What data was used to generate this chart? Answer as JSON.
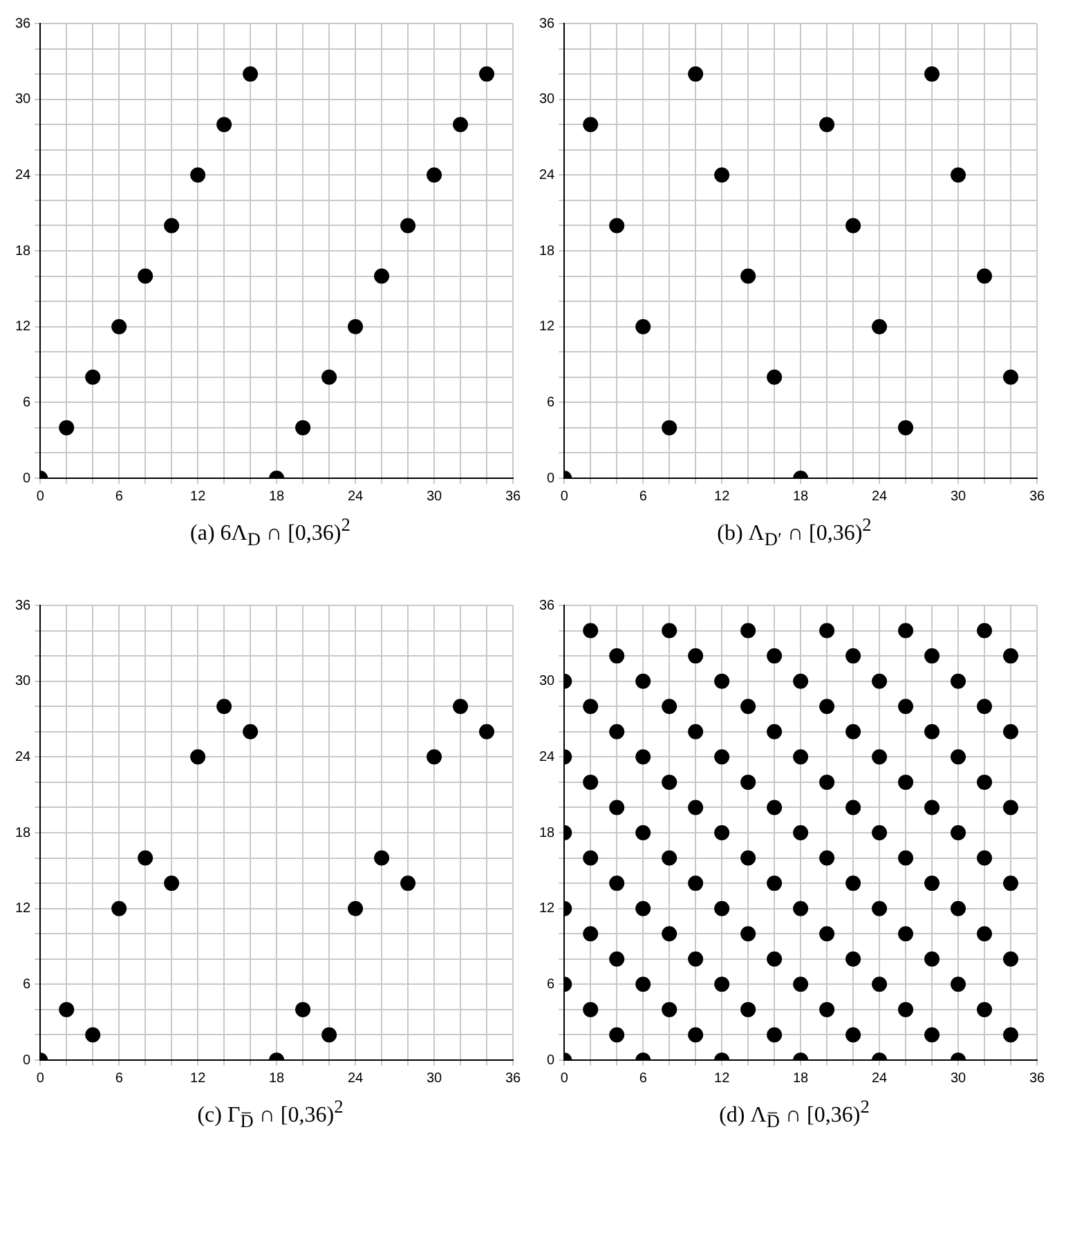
{
  "chart_data": [
    {
      "type": "scatter",
      "title": "(a) 6Λ$_{D}$ ∩ [0,36)$^{2}$",
      "color": "#000000",
      "marker": "circle",
      "grid": true,
      "xlim": [
        0,
        36
      ],
      "ylim": [
        0,
        36
      ],
      "xticks": [
        0,
        {
          "value": 2,
          "label": null
        },
        {
          "value": 4,
          "label": null
        },
        6,
        {
          "value": 8,
          "label": null
        },
        {
          "value": 10,
          "label": null
        },
        12,
        {
          "value": 14,
          "label": null
        },
        {
          "value": 16,
          "label": null
        },
        18,
        {
          "value": 20,
          "label": null
        },
        {
          "value": 22,
          "label": null
        },
        24,
        {
          "value": 26,
          "label": null
        },
        {
          "value": 28,
          "label": null
        },
        30,
        {
          "value": 32,
          "label": null
        },
        {
          "value": 34,
          "label": null
        },
        36
      ],
      "yticks": [
        0,
        {
          "value": 2,
          "label": null
        },
        {
          "value": 4,
          "label": null
        },
        6,
        {
          "value": 8,
          "label": null
        },
        {
          "value": 10,
          "label": null
        },
        12,
        {
          "value": 14,
          "label": null
        },
        {
          "value": 16,
          "label": null
        },
        18,
        {
          "value": 20,
          "label": null
        },
        {
          "value": 22,
          "label": null
        },
        24,
        {
          "value": 26,
          "label": null
        },
        {
          "value": 28,
          "label": null
        },
        30,
        {
          "value": 32,
          "label": null
        },
        {
          "value": 34,
          "label": null
        },
        36
      ],
      "x": [
        0,
        2,
        4,
        6,
        8,
        10,
        12,
        14,
        16,
        18,
        20,
        22,
        24,
        26,
        28,
        30,
        32,
        34
      ],
      "values": [
        0,
        4,
        8,
        12,
        16,
        20,
        24,
        28,
        32,
        0,
        4,
        8,
        12,
        16,
        20,
        24,
        28,
        32
      ]
    },
    {
      "type": "scatter",
      "title": "(b) Λ$_{D′}$ ∩ [0,36)$^{2}$",
      "color": "#000000",
      "marker": "circle",
      "grid": true,
      "xlim": [
        0,
        36
      ],
      "ylim": [
        0,
        36
      ],
      "xticks": [
        0,
        {
          "value": 2,
          "label": null
        },
        {
          "value": 4,
          "label": null
        },
        6,
        {
          "value": 8,
          "label": null
        },
        {
          "value": 10,
          "label": null
        },
        12,
        {
          "value": 14,
          "label": null
        },
        {
          "value": 16,
          "label": null
        },
        18,
        {
          "value": 20,
          "label": null
        },
        {
          "value": 22,
          "label": null
        },
        24,
        {
          "value": 26,
          "label": null
        },
        {
          "value": 28,
          "label": null
        },
        30,
        {
          "value": 32,
          "label": null
        },
        {
          "value": 34,
          "label": null
        },
        36
      ],
      "yticks": [
        0,
        {
          "value": 2,
          "label": null
        },
        {
          "value": 4,
          "label": null
        },
        6,
        {
          "value": 8,
          "label": null
        },
        {
          "value": 10,
          "label": null
        },
        12,
        {
          "value": 14,
          "label": null
        },
        {
          "value": 16,
          "label": null
        },
        18,
        {
          "value": 20,
          "label": null
        },
        {
          "value": 22,
          "label": null
        },
        24,
        {
          "value": 26,
          "label": null
        },
        {
          "value": 28,
          "label": null
        },
        30,
        {
          "value": 32,
          "label": null
        },
        {
          "value": 34,
          "label": null
        },
        36
      ],
      "x": [
        0,
        2,
        4,
        6,
        8,
        10,
        12,
        14,
        16,
        18,
        20,
        22,
        24,
        26,
        28,
        30,
        32,
        34
      ],
      "values": [
        0,
        28,
        20,
        12,
        4,
        32,
        24,
        16,
        8,
        0,
        28,
        20,
        12,
        4,
        32,
        24,
        16,
        8
      ]
    },
    {
      "type": "scatter",
      "title": "(c) Γ$_{D̅}$ ∩ [0,36)$^{2}$",
      "color": "#000000",
      "marker": "circle",
      "grid": true,
      "xlim": [
        0,
        36
      ],
      "ylim": [
        0,
        36
      ],
      "xticks": [
        0,
        {
          "value": 2,
          "label": null
        },
        {
          "value": 4,
          "label": null
        },
        6,
        {
          "value": 8,
          "label": null
        },
        {
          "value": 10,
          "label": null
        },
        12,
        {
          "value": 14,
          "label": null
        },
        {
          "value": 16,
          "label": null
        },
        18,
        {
          "value": 20,
          "label": null
        },
        {
          "value": 22,
          "label": null
        },
        24,
        {
          "value": 26,
          "label": null
        },
        {
          "value": 28,
          "label": null
        },
        30,
        {
          "value": 32,
          "label": null
        },
        {
          "value": 34,
          "label": null
        },
        36
      ],
      "yticks": [
        0,
        {
          "value": 2,
          "label": null
        },
        {
          "value": 4,
          "label": null
        },
        6,
        {
          "value": 8,
          "label": null
        },
        {
          "value": 10,
          "label": null
        },
        12,
        {
          "value": 14,
          "label": null
        },
        {
          "value": 16,
          "label": null
        },
        18,
        {
          "value": 20,
          "label": null
        },
        {
          "value": 22,
          "label": null
        },
        24,
        {
          "value": 26,
          "label": null
        },
        {
          "value": 28,
          "label": null
        },
        30,
        {
          "value": 32,
          "label": null
        },
        {
          "value": 34,
          "label": null
        },
        36
      ],
      "x": [
        0,
        2,
        4,
        6,
        8,
        10,
        12,
        14,
        16,
        18,
        20,
        22,
        24,
        26,
        28,
        30,
        32,
        34
      ],
      "values": [
        0,
        4,
        2,
        12,
        16,
        14,
        24,
        28,
        26,
        0,
        4,
        2,
        12,
        16,
        14,
        24,
        28,
        26
      ]
    },
    {
      "type": "scatter",
      "title": "(d) Λ$_{D̅}$ ∩ [0,36)$^{2}$",
      "color": "#000000",
      "marker": "circle",
      "grid": true,
      "xlim": [
        0,
        36
      ],
      "ylim": [
        0,
        36
      ],
      "xticks": [
        0,
        {
          "value": 2,
          "label": null
        },
        {
          "value": 4,
          "label": null
        },
        6,
        {
          "value": 8,
          "label": null
        },
        {
          "value": 10,
          "label": null
        },
        12,
        {
          "value": 14,
          "label": null
        },
        {
          "value": 16,
          "label": null
        },
        18,
        {
          "value": 20,
          "label": null
        },
        {
          "value": 22,
          "label": null
        },
        24,
        {
          "value": 26,
          "label": null
        },
        {
          "value": 28,
          "label": null
        },
        30,
        {
          "value": 32,
          "label": null
        },
        {
          "value": 34,
          "label": null
        },
        36
      ],
      "yticks": [
        0,
        {
          "value": 2,
          "label": null
        },
        {
          "value": 4,
          "label": null
        },
        6,
        {
          "value": 8,
          "label": null
        },
        {
          "value": 10,
          "label": null
        },
        12,
        {
          "value": 14,
          "label": null
        },
        {
          "value": 16,
          "label": null
        },
        18,
        {
          "value": 20,
          "label": null
        },
        {
          "value": 22,
          "label": null
        },
        24,
        {
          "value": 26,
          "label": null
        },
        {
          "value": 28,
          "label": null
        },
        30,
        {
          "value": 32,
          "label": null
        },
        {
          "value": 34,
          "label": null
        },
        36
      ],
      "x": [
        0,
        0,
        0,
        0,
        0,
        0,
        2,
        2,
        2,
        2,
        2,
        2,
        4,
        4,
        4,
        4,
        4,
        4,
        6,
        6,
        6,
        6,
        6,
        6,
        8,
        8,
        8,
        8,
        8,
        8,
        10,
        10,
        10,
        10,
        10,
        10,
        12,
        12,
        12,
        12,
        12,
        12,
        14,
        14,
        14,
        14,
        14,
        14,
        16,
        16,
        16,
        16,
        16,
        16,
        18,
        18,
        18,
        18,
        18,
        18,
        20,
        20,
        20,
        20,
        20,
        20,
        22,
        22,
        22,
        22,
        22,
        22,
        24,
        24,
        24,
        24,
        24,
        24,
        26,
        26,
        26,
        26,
        26,
        26,
        28,
        28,
        28,
        28,
        28,
        28,
        30,
        30,
        30,
        30,
        30,
        30,
        32,
        32,
        32,
        32,
        32,
        32,
        34,
        34,
        34,
        34,
        34,
        34
      ],
      "values": [
        0,
        6,
        12,
        18,
        24,
        30,
        4,
        10,
        16,
        22,
        28,
        34,
        2,
        8,
        14,
        20,
        26,
        32,
        0,
        6,
        12,
        18,
        24,
        30,
        4,
        10,
        16,
        22,
        28,
        34,
        2,
        8,
        14,
        20,
        26,
        32,
        0,
        6,
        12,
        18,
        24,
        30,
        4,
        10,
        16,
        22,
        28,
        34,
        2,
        8,
        14,
        20,
        26,
        32,
        0,
        6,
        12,
        18,
        24,
        30,
        4,
        10,
        16,
        22,
        28,
        34,
        2,
        8,
        14,
        20,
        26,
        32,
        0,
        6,
        12,
        18,
        24,
        30,
        4,
        10,
        16,
        22,
        28,
        34,
        2,
        8,
        14,
        20,
        26,
        32,
        0,
        6,
        12,
        18,
        24,
        30,
        4,
        10,
        16,
        22,
        28,
        34,
        2,
        8,
        14,
        20,
        26,
        32
      ]
    }
  ]
}
